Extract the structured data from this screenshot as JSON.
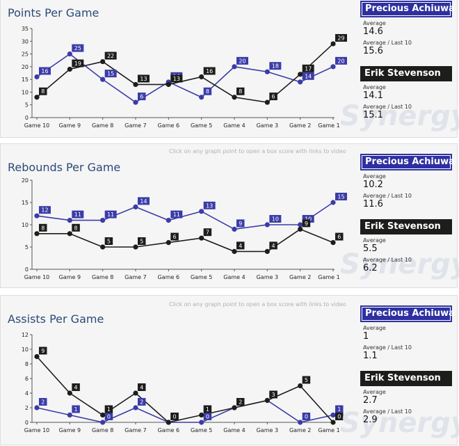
{
  "hint_text": "Click on any graph point to open a box score with links to video",
  "watermark_text": "Synergy",
  "colors": {
    "player1": "#3b3ca8",
    "player2": "#1d1d1b",
    "axis": "#555555"
  },
  "chart_data": [
    {
      "type": "line",
      "title": "Points Per Game",
      "categories": [
        "Game 10",
        "Game 9",
        "Game 8",
        "Game 7",
        "Game 6",
        "Game 5",
        "Game 4",
        "Game 3",
        "Game 2",
        "Game 1"
      ],
      "ylim": [
        0,
        35
      ],
      "yticks": [
        0,
        5,
        10,
        15,
        20,
        25,
        30,
        35
      ],
      "series": [
        {
          "name": "Precious Achiuwa",
          "values": [
            16,
            25,
            15,
            6,
            14,
            8,
            20,
            18,
            14,
            20
          ]
        },
        {
          "name": "Erik Stevenson",
          "values": [
            8,
            19,
            22,
            13,
            13,
            16,
            8,
            6,
            17,
            29
          ]
        }
      ]
    },
    {
      "type": "line",
      "title": "Rebounds Per Game",
      "categories": [
        "Game 10",
        "Game 9",
        "Game 8",
        "Game 7",
        "Game 6",
        "Game 5",
        "Game 4",
        "Game 3",
        "Game 2",
        "Game 1"
      ],
      "ylim": [
        0,
        20
      ],
      "yticks": [
        0,
        5,
        10,
        15,
        20
      ],
      "series": [
        {
          "name": "Precious Achiuwa",
          "values": [
            12,
            11,
            11,
            14,
            11,
            13,
            9,
            10,
            10,
            15
          ]
        },
        {
          "name": "Erik Stevenson",
          "values": [
            8,
            8,
            5,
            5,
            6,
            7,
            4,
            4,
            9,
            6
          ]
        }
      ]
    },
    {
      "type": "line",
      "title": "Assists Per Game",
      "categories": [
        "Game 10",
        "Game 9",
        "Game 8",
        "Game 7",
        "Game 6",
        "Game 5",
        "Game 4",
        "Game 3",
        "Game 2",
        "Game 1"
      ],
      "ylim": [
        0,
        12
      ],
      "yticks": [
        0,
        2,
        4,
        6,
        8,
        10,
        12
      ],
      "series": [
        {
          "name": "Precious Achiuwa",
          "values": [
            2,
            1,
            0,
            2,
            0,
            0,
            2,
            3,
            0,
            1
          ]
        },
        {
          "name": "Erik Stevenson",
          "values": [
            9,
            4,
            1,
            4,
            0,
            1,
            2,
            3,
            5,
            0
          ]
        }
      ]
    }
  ],
  "sidebars": [
    {
      "player1": {
        "name": "Precious  Achiuwa",
        "avg_label": "Average",
        "avg": "14.6",
        "last_label": "Average / Last 10",
        "last": "15.6"
      },
      "player2": {
        "name": "Erik Stevenson",
        "avg_label": "Average",
        "avg": "14.1",
        "last_label": "Average / Last 10",
        "last": "15.1"
      }
    },
    {
      "player1": {
        "name": "Precious  Achiuwa",
        "avg_label": "Average",
        "avg": "10.2",
        "last_label": "Average / Last 10",
        "last": "11.6"
      },
      "player2": {
        "name": "Erik Stevenson",
        "avg_label": "Average",
        "avg": "5.5",
        "last_label": "Average / Last 10",
        "last": "6.2"
      }
    },
    {
      "player1": {
        "name": "Precious  Achiuwa",
        "avg_label": "Average",
        "avg": "1",
        "last_label": "Average / Last 10",
        "last": "1.1"
      },
      "player2": {
        "name": "Erik Stevenson",
        "avg_label": "Average",
        "avg": "2.7",
        "last_label": "Average / Last 10",
        "last": "2.9"
      }
    }
  ]
}
